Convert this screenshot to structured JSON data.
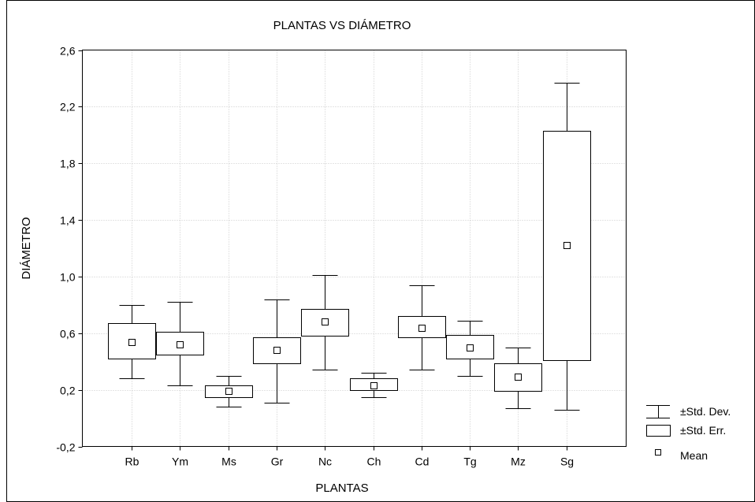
{
  "chart_data": {
    "type": "box",
    "title": "PLANTAS VS DIÁMETRO",
    "xlabel": "PLANTAS",
    "ylabel": "DIÁMETRO",
    "ylim": [
      -0.2,
      2.6
    ],
    "yticks": [
      -0.2,
      0.2,
      0.6,
      1.0,
      1.4,
      1.8,
      2.2,
      2.6
    ],
    "ytick_labels": [
      "-0,2",
      "0,2",
      "0,6",
      "1,0",
      "1,4",
      "1,8",
      "2,2",
      "2,6"
    ],
    "grid": true,
    "legend_position": "bottom-right",
    "legend": {
      "std_dev": "±Std. Dev.",
      "std_err": "±Std. Err.",
      "mean": "Mean"
    },
    "categories": [
      "Rb",
      "Ym",
      "Ms",
      "Gr",
      "Nc",
      "Ch",
      "Cd",
      "Tg",
      "Mz",
      "Sg"
    ],
    "series": [
      {
        "category": "Rb",
        "mean": 0.54,
        "se_low": 0.42,
        "se_high": 0.67,
        "sd_low": 0.28,
        "sd_high": 0.8
      },
      {
        "category": "Ym",
        "mean": 0.52,
        "se_low": 0.45,
        "se_high": 0.61,
        "sd_low": 0.23,
        "sd_high": 0.82
      },
      {
        "category": "Ms",
        "mean": 0.19,
        "se_low": 0.15,
        "se_high": 0.23,
        "sd_low": 0.08,
        "sd_high": 0.3
      },
      {
        "category": "Gr",
        "mean": 0.48,
        "se_low": 0.39,
        "se_high": 0.57,
        "sd_low": 0.11,
        "sd_high": 0.84
      },
      {
        "category": "Nc",
        "mean": 0.68,
        "se_low": 0.58,
        "se_high": 0.77,
        "sd_low": 0.34,
        "sd_high": 1.01
      },
      {
        "category": "Ch",
        "mean": 0.23,
        "se_low": 0.2,
        "se_high": 0.28,
        "sd_low": 0.15,
        "sd_high": 0.32
      },
      {
        "category": "Cd",
        "mean": 0.64,
        "se_low": 0.57,
        "se_high": 0.72,
        "sd_low": 0.34,
        "sd_high": 0.94
      },
      {
        "category": "Tg",
        "mean": 0.5,
        "se_low": 0.42,
        "se_high": 0.59,
        "sd_low": 0.3,
        "sd_high": 0.69
      },
      {
        "category": "Mz",
        "mean": 0.29,
        "se_low": 0.19,
        "se_high": 0.39,
        "sd_low": 0.07,
        "sd_high": 0.5
      },
      {
        "category": "Sg",
        "mean": 1.22,
        "se_low": 0.41,
        "se_high": 2.03,
        "sd_low": 0.06,
        "sd_high": 2.37
      }
    ]
  }
}
